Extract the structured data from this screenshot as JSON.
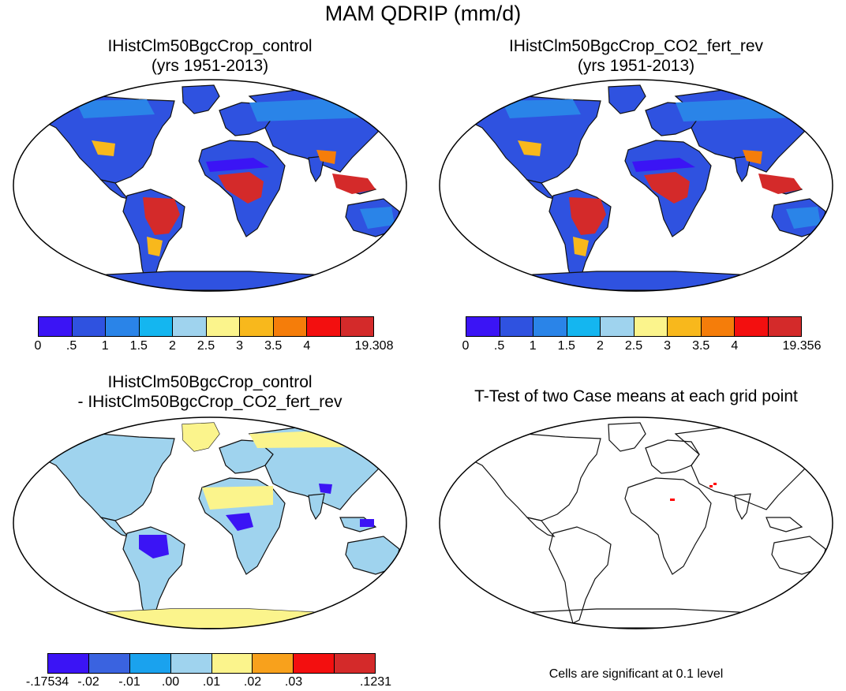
{
  "figure": {
    "title": "MAM QDRIP (mm/d)"
  },
  "panels": [
    {
      "id": "control",
      "title_line1": "IHistClm50BgcCrop_control",
      "title_line2": "(yrs 1951-2013)"
    },
    {
      "id": "co2",
      "title_line1": "IHistClm50BgcCrop_CO2_fert_rev",
      "title_line2": "(yrs 1951-2013)"
    },
    {
      "id": "diff",
      "title_line1": "IHistClm50BgcCrop_control",
      "title_line2": "- IHistClm50BgcCrop_CO2_fert_rev"
    },
    {
      "id": "ttest",
      "title_line1": "T-Test of two Case means at each grid point",
      "title_line2": ""
    }
  ],
  "colorbars": {
    "control": {
      "colors": [
        "#3b14f5",
        "#2f52e0",
        "#2a84e8",
        "#14b6f0",
        "#9fd3ee",
        "#fbf48c",
        "#f8b81c",
        "#f57d0a",
        "#f30f0f",
        "#d42a2a"
      ],
      "labels": [
        "0",
        ".5",
        "1",
        "1.5",
        "2",
        "2.5",
        "3",
        "3.5",
        "4",
        "19.308"
      ]
    },
    "co2": {
      "colors": [
        "#3b14f5",
        "#2f52e0",
        "#2a84e8",
        "#14b6f0",
        "#9fd3ee",
        "#fbf48c",
        "#f8b81c",
        "#f57d0a",
        "#f30f0f",
        "#d42a2a"
      ],
      "labels": [
        "0",
        ".5",
        "1",
        "1.5",
        "2",
        "2.5",
        "3",
        "3.5",
        "4",
        "19.356"
      ]
    },
    "diff": {
      "colors": [
        "#3b14f5",
        "#3a63e0",
        "#1aa2ee",
        "#9fd3ee",
        "#fbf48c",
        "#f8a11c",
        "#f30f0f",
        "#d42a2a"
      ],
      "labels": [
        "-.17534",
        "-.02",
        "-.01",
        ".00",
        ".01",
        ".02",
        ".03",
        ".1231"
      ]
    }
  },
  "ttest_note": "Cells are significant at 0.1 level",
  "legend_colors": {
    "significant": "#ff0000",
    "coast": "#000000"
  }
}
